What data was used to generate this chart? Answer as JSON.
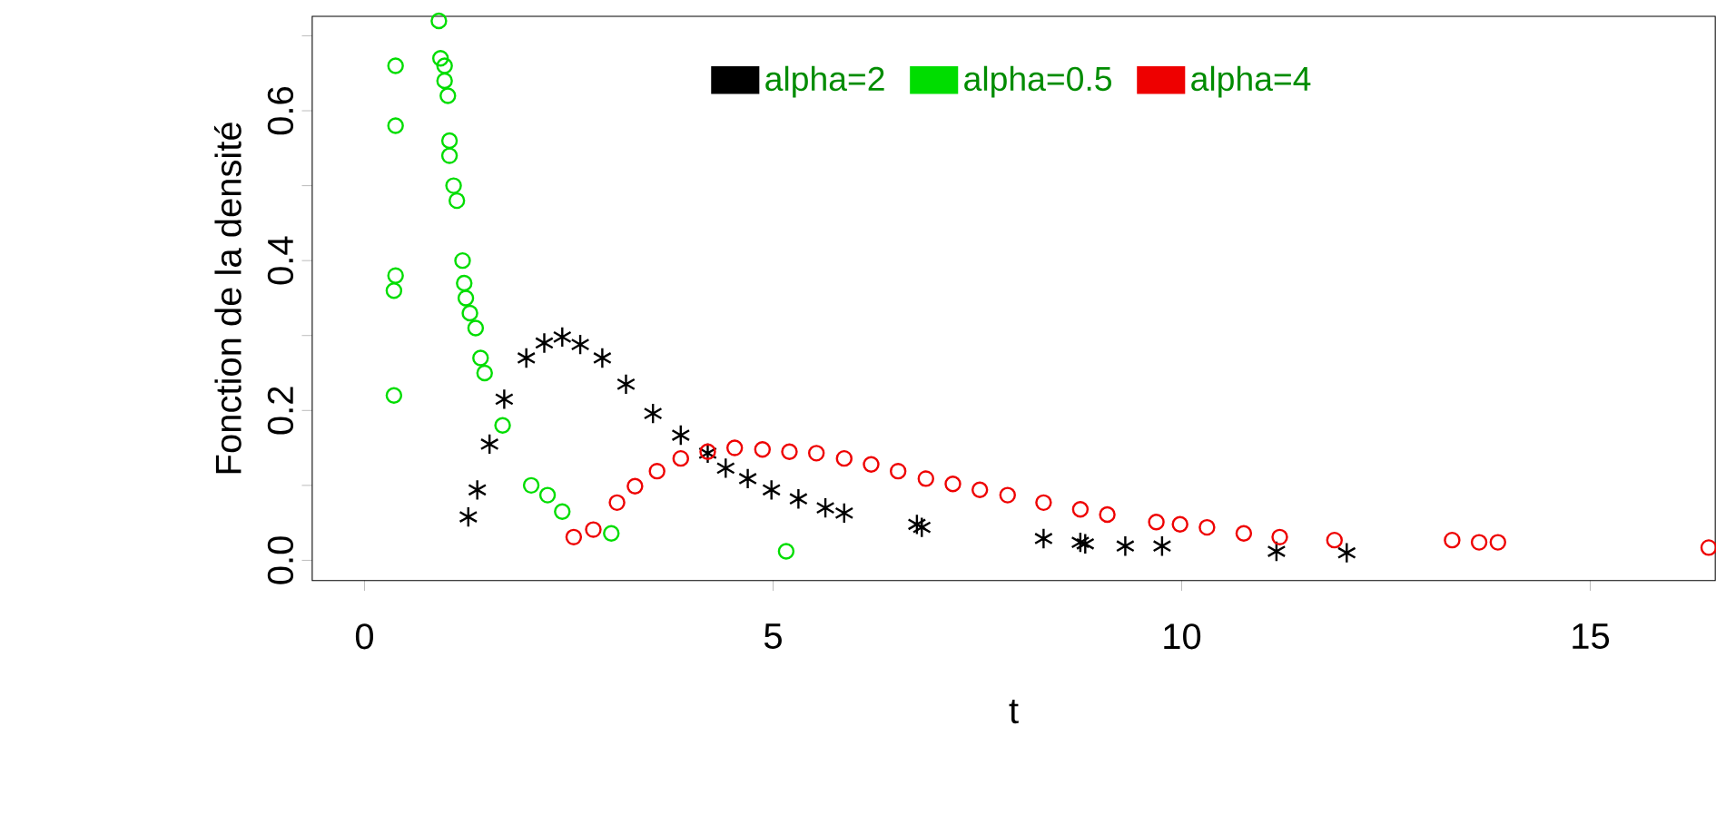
{
  "chart_data": {
    "type": "scatter",
    "xlabel": "t",
    "ylabel": "Fonction de la densité",
    "xlim": [
      -0.64,
      16.53
    ],
    "ylim": [
      -0.027,
      0.726
    ],
    "xticks": [
      0,
      5,
      10,
      15
    ],
    "yticks": [
      {
        "value": 0,
        "label": "0.0"
      },
      {
        "value": 0.1,
        "label": null
      },
      0.2,
      {
        "value": 0.3,
        "label": null
      },
      0.4,
      {
        "value": 0.5,
        "label": null
      },
      0.6,
      {
        "value": 0.7,
        "label": null
      }
    ],
    "grid": false,
    "legend": "top",
    "series": [
      {
        "name": "alpha=2",
        "color": "#000000",
        "marker": "cross",
        "x": [
          1.27,
          1.38,
          1.53,
          1.71,
          1.98,
          2.2,
          2.42,
          2.64,
          2.91,
          3.2,
          3.53,
          3.87,
          4.2,
          4.42,
          4.69,
          4.98,
          5.31,
          5.64,
          5.87,
          6.76,
          6.82,
          8.31,
          8.76,
          8.82,
          9.31,
          9.76,
          11.16,
          12.02
        ],
        "values": [
          0.058,
          0.094,
          0.155,
          0.215,
          0.27,
          0.29,
          0.298,
          0.288,
          0.27,
          0.235,
          0.196,
          0.167,
          0.143,
          0.123,
          0.109,
          0.094,
          0.082,
          0.07,
          0.063,
          0.048,
          0.044,
          0.029,
          0.024,
          0.022,
          0.019,
          0.019,
          0.012,
          0.01
        ]
      },
      {
        "name": "alpha=0.5",
        "color": "#00dd00",
        "marker": "circle",
        "x": [
          0.38,
          0.38,
          0.38,
          0.36,
          0.36,
          0.91,
          0.93,
          0.98,
          0.98,
          1.02,
          1.04,
          1.04,
          1.09,
          1.13,
          1.2,
          1.22,
          1.24,
          1.29,
          1.36,
          1.42,
          1.47,
          1.69,
          2.04,
          2.24,
          2.42,
          3.02,
          5.16
        ],
        "values": [
          0.66,
          0.58,
          0.38,
          0.36,
          0.22,
          0.72,
          0.67,
          0.66,
          0.64,
          0.62,
          0.56,
          0.54,
          0.5,
          0.48,
          0.4,
          0.37,
          0.35,
          0.33,
          0.31,
          0.27,
          0.25,
          0.18,
          0.1,
          0.087,
          0.065,
          0.036,
          0.012
        ]
      },
      {
        "name": "alpha=4",
        "color": "#ee0000",
        "marker": "circle",
        "x": [
          2.56,
          2.8,
          3.09,
          3.31,
          3.58,
          3.87,
          4.2,
          4.53,
          4.87,
          5.2,
          5.53,
          5.87,
          6.2,
          6.53,
          6.87,
          7.2,
          7.53,
          7.87,
          8.31,
          8.76,
          9.09,
          9.69,
          9.98,
          10.31,
          10.76,
          11.2,
          11.87,
          13.31,
          13.64,
          13.87,
          16.45
        ],
        "values": [
          0.031,
          0.041,
          0.077,
          0.099,
          0.119,
          0.136,
          0.145,
          0.15,
          0.148,
          0.145,
          0.143,
          0.136,
          0.128,
          0.119,
          0.109,
          0.102,
          0.094,
          0.087,
          0.077,
          0.068,
          0.061,
          0.051,
          0.048,
          0.044,
          0.036,
          0.031,
          0.027,
          0.027,
          0.024,
          0.024,
          0.017
        ]
      }
    ]
  }
}
